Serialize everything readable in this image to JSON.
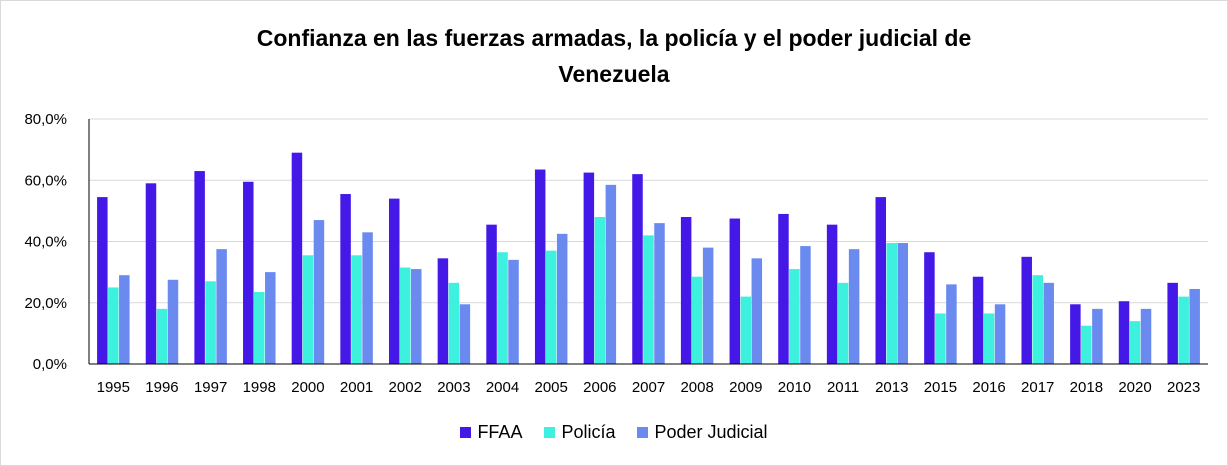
{
  "chart_data": {
    "type": "bar",
    "title_line1": "Confianza en las fuerzas armadas, la policía y el poder judicial de",
    "title_line2": "Venezuela",
    "xlabel": "",
    "ylabel": "",
    "ylim": [
      0,
      80
    ],
    "yticks": [
      "0,0%",
      "20,0%",
      "40,0%",
      "60,0%",
      "80,0%"
    ],
    "ytick_values": [
      0,
      20,
      40,
      60,
      80
    ],
    "grid": true,
    "legend_position": "bottom",
    "categories": [
      "1995",
      "1996",
      "1997",
      "1998",
      "2000",
      "2001",
      "2002",
      "2003",
      "2004",
      "2005",
      "2006",
      "2007",
      "2008",
      "2009",
      "2010",
      "2011",
      "2013",
      "2015",
      "2016",
      "2017",
      "2018",
      "2020",
      "2023"
    ],
    "series": [
      {
        "name": "FFAA",
        "color": "#4419e8",
        "values": [
          54.5,
          59,
          63,
          59.5,
          69,
          55.5,
          54,
          34.5,
          45.5,
          63.5,
          62.5,
          62,
          48,
          47.5,
          49,
          45.5,
          54.5,
          36.5,
          28.5,
          35,
          19.5,
          20.5,
          26.5
        ]
      },
      {
        "name": "Policía",
        "color": "#3ef0de",
        "values": [
          25,
          18,
          27,
          23.5,
          35.5,
          35.5,
          31.5,
          26.5,
          36.5,
          37,
          48,
          42,
          28.5,
          22,
          31,
          26.5,
          39.5,
          16.5,
          16.5,
          29,
          12.5,
          14,
          22
        ]
      },
      {
        "name": "Poder Judicial",
        "color": "#6b8af0",
        "values": [
          29,
          27.5,
          37.5,
          30,
          47,
          43,
          31,
          19.5,
          34,
          42.5,
          58.5,
          46,
          38,
          34.5,
          38.5,
          37.5,
          39.5,
          26,
          19.5,
          26.5,
          18,
          18,
          24.5
        ]
      }
    ]
  }
}
